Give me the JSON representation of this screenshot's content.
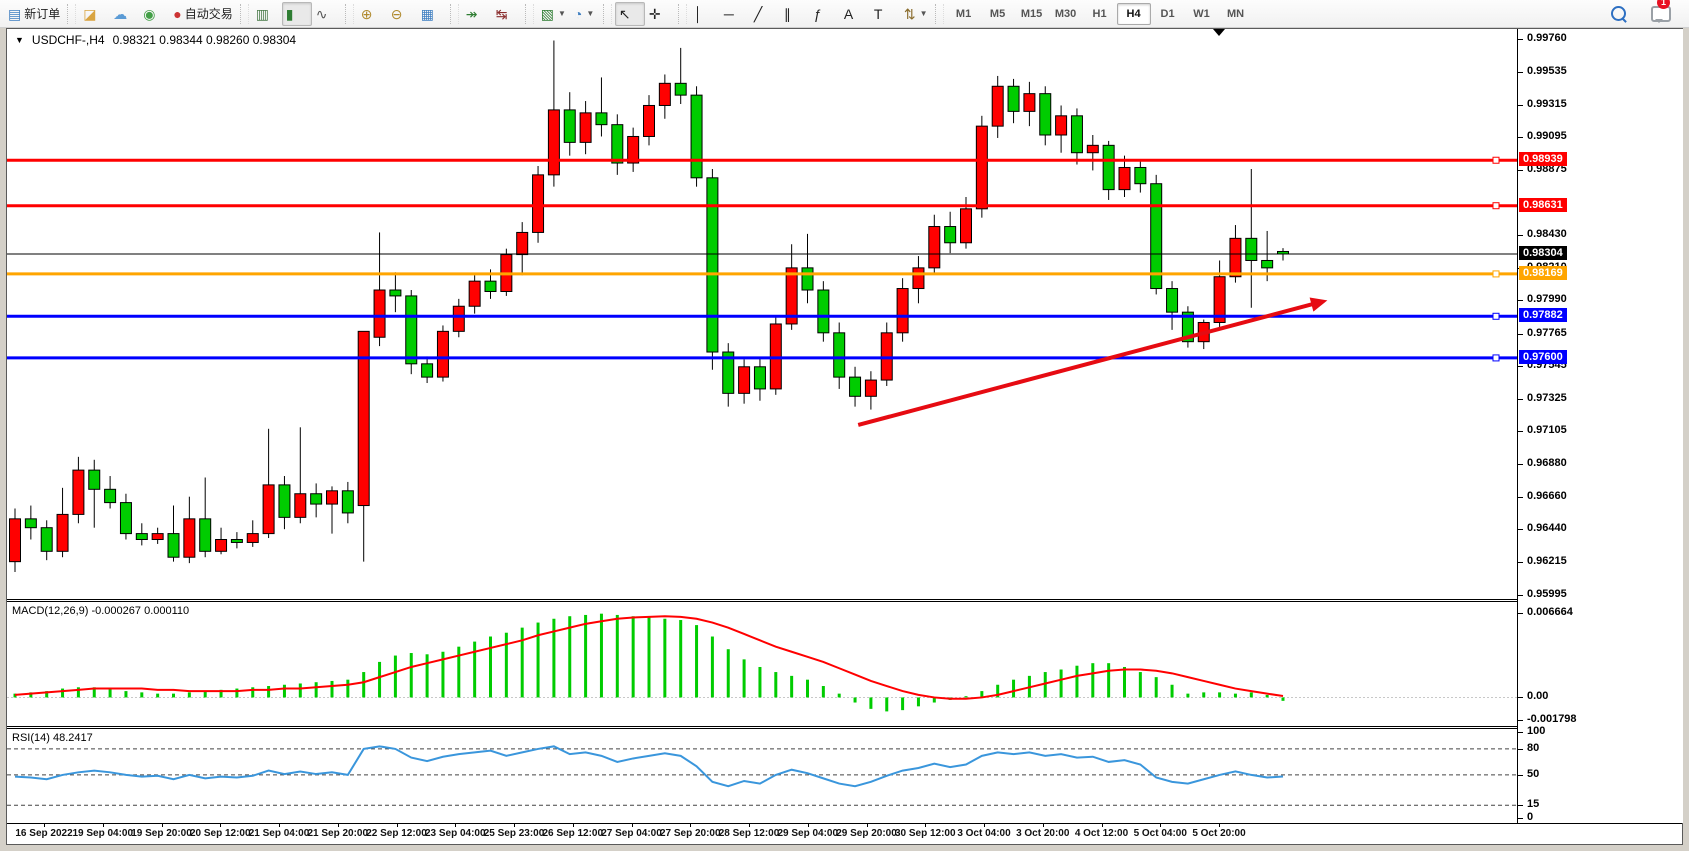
{
  "toolbar": {
    "buttons": [
      {
        "name": "new-order-button",
        "icon": "new-order-icon",
        "glyph": "▤",
        "color": "#3f7fc1",
        "label": "新订单"
      },
      {
        "sep": true
      },
      {
        "name": "highlighter-button",
        "icon": "highlighter-icon",
        "glyph": "◪",
        "color": "#d9a441"
      },
      {
        "name": "community-button",
        "icon": "community-icon",
        "glyph": "☁",
        "color": "#5b9bd5"
      },
      {
        "name": "signals-button",
        "icon": "signals-icon",
        "glyph": "◉",
        "color": "#43a047"
      },
      {
        "name": "autotrading-button",
        "icon": "autotrading-icon",
        "glyph": "●",
        "color": "#cc3333",
        "label": "自动交易"
      },
      {
        "sep": true
      },
      {
        "name": "bar-chart-button",
        "icon": "bar-chart-icon",
        "glyph": "▥",
        "color": "#4a7b4a"
      },
      {
        "name": "candlestick-button",
        "icon": "candlestick-icon",
        "glyph": "▮",
        "color": "#2e7d32",
        "active": true
      },
      {
        "name": "line-chart-button",
        "icon": "line-chart-icon",
        "glyph": "∿",
        "color": "#555555"
      },
      {
        "sep": true
      },
      {
        "name": "zoom-in-button",
        "icon": "zoom-in-icon",
        "glyph": "⊕",
        "color": "#b08a2e"
      },
      {
        "name": "zoom-out-button",
        "icon": "zoom-out-icon",
        "glyph": "⊖",
        "color": "#b08a2e"
      },
      {
        "name": "tile-windows-button",
        "icon": "tile-windows-icon",
        "glyph": "▦",
        "color": "#3f7fc1"
      },
      {
        "sep": true
      },
      {
        "name": "autoscroll-button",
        "icon": "autoscroll-icon",
        "glyph": "↠",
        "color": "#2e7d32"
      },
      {
        "name": "chart-shift-button",
        "icon": "chart-shift-icon",
        "glyph": "↹",
        "color": "#8a2e2e"
      },
      {
        "sep": true
      },
      {
        "name": "new-chart-button",
        "icon": "new-chart-icon",
        "glyph": "▧",
        "color": "#2e7d32",
        "dropdown": true
      },
      {
        "name": "periods-button",
        "icon": "periods-icon",
        "glyph": "◔",
        "color": "#3f7fc1",
        "dropdown": true
      },
      {
        "sep": true
      },
      {
        "name": "cursor-button",
        "icon": "cursor-icon",
        "glyph": "↖",
        "color": "#222222",
        "active": true
      },
      {
        "name": "crosshair-button",
        "icon": "crosshair-icon",
        "glyph": "✛",
        "color": "#222222"
      },
      {
        "sep": true
      },
      {
        "name": "vline-button",
        "icon": "vline-icon",
        "glyph": "│",
        "color": "#222222"
      },
      {
        "name": "hline-button",
        "icon": "hline-icon",
        "glyph": "─",
        "color": "#222222"
      },
      {
        "name": "trendline-button",
        "icon": "trendline-icon",
        "glyph": "╱",
        "color": "#222222"
      },
      {
        "name": "channel-button",
        "icon": "channel-icon",
        "glyph": "∥",
        "color": "#222222"
      },
      {
        "name": "fibonacci-button",
        "icon": "fibonacci-icon",
        "glyph": "ƒ",
        "color": "#222222"
      },
      {
        "name": "text-button",
        "icon": "text-icon",
        "glyph": "A",
        "color": "#222222"
      },
      {
        "name": "label-button",
        "icon": "label-icon",
        "glyph": "T",
        "color": "#222222"
      },
      {
        "name": "arrows-button",
        "icon": "arrows-icon",
        "glyph": "⇅",
        "color": "#8a6d2e",
        "dropdown": true
      },
      {
        "sep": true
      }
    ],
    "timeframes": [
      {
        "label": "M1"
      },
      {
        "label": "M5"
      },
      {
        "label": "M15"
      },
      {
        "label": "M30"
      },
      {
        "label": "H1"
      },
      {
        "label": "H4",
        "active": true
      },
      {
        "label": "D1"
      },
      {
        "label": "W1"
      },
      {
        "label": "MN"
      }
    ],
    "right": [
      {
        "name": "search-button",
        "icon": "search-icon"
      },
      {
        "name": "chat-button",
        "icon": "chat-icon",
        "badge": "1"
      }
    ]
  },
  "chart": {
    "title": "USDCHF-,H4",
    "ohlc": "0.98321 0.98344 0.98260 0.98304",
    "macd_label": "MACD(12,26,9) -0.000267 0.000110",
    "rsi_label": "RSI(14) 48.2417"
  },
  "chart_data": [
    {
      "type": "candlestick",
      "symbol": "USDCHF-",
      "period": "H4",
      "current": {
        "open": 0.98321,
        "high": 0.98344,
        "low": 0.9826,
        "close": 0.98304
      },
      "ylim": [
        0.95967,
        0.99828
      ],
      "colors": {
        "up": "#ff0000",
        "down": "#00cc00",
        "wick": "#000000",
        "body_outline": "#000000"
      },
      "y_axis_labels": [
        "0.99760",
        "0.99535",
        "0.99315",
        "0.99095",
        "0.98875",
        "0.98430",
        "0.98210",
        "0.97990",
        "0.97765",
        "0.97545",
        "0.97325",
        "0.97105",
        "0.96880",
        "0.96660",
        "0.96440",
        "0.96215",
        "0.95995"
      ],
      "x_axis_labels": [
        "16 Sep 2022",
        "19 Sep 04:00",
        "19 Sep 20:00",
        "20 Sep 12:00",
        "21 Sep 04:00",
        "21 Sep 20:00",
        "22 Sep 12:00",
        "23 Sep 04:00",
        "25 Sep 23:00",
        "26 Sep 12:00",
        "27 Sep 04:00",
        "27 Sep 20:00",
        "28 Sep 12:00",
        "29 Sep 04:00",
        "29 Sep 20:00",
        "30 Sep 12:00",
        "3 Oct 04:00",
        "3 Oct 20:00",
        "4 Oct 12:00",
        "5 Oct 04:00",
        "5 Oct 20:00"
      ],
      "hlines": [
        {
          "price": 0.98939,
          "label": "0.98939",
          "color": "#ff0000",
          "width": 3
        },
        {
          "price": 0.98631,
          "label": "0.98631",
          "color": "#ff0000",
          "width": 3
        },
        {
          "price": 0.98304,
          "label": "0.98304",
          "color": "#000000",
          "width": 1,
          "role": "current-price"
        },
        {
          "price": 0.98169,
          "label": "0.98169",
          "color": "#ffa500",
          "width": 3
        },
        {
          "price": 0.97882,
          "label": "0.97882",
          "color": "#0000ff",
          "width": 3
        },
        {
          "price": 0.976,
          "label": "0.97600",
          "color": "#0000ff",
          "width": 3
        }
      ],
      "trend_arrow": {
        "from": {
          "bar": 53.2,
          "price": 0.97146
        },
        "to": {
          "bar": 82.8,
          "price": 0.9799
        },
        "color": "#e60b12"
      },
      "unit": 1e-05,
      "candles": [
        [
          96220,
          96580,
          96150,
          96510
        ],
        [
          96510,
          96600,
          96370,
          96450
        ],
        [
          96450,
          96500,
          96230,
          96290
        ],
        [
          96290,
          96720,
          96250,
          96540
        ],
        [
          96540,
          96930,
          96480,
          96840
        ],
        [
          96840,
          96910,
          96450,
          96710
        ],
        [
          96710,
          96800,
          96580,
          96620
        ],
        [
          96620,
          96680,
          96370,
          96410
        ],
        [
          96410,
          96480,
          96330,
          96370
        ],
        [
          96370,
          96450,
          96340,
          96410
        ],
        [
          96410,
          96600,
          96220,
          96250
        ],
        [
          96250,
          96660,
          96210,
          96510
        ],
        [
          96510,
          96790,
          96250,
          96290
        ],
        [
          96290,
          96450,
          96270,
          96370
        ],
        [
          96370,
          96420,
          96310,
          96350
        ],
        [
          96350,
          96500,
          96320,
          96410
        ],
        [
          96410,
          97120,
          96380,
          96740
        ],
        [
          96740,
          96800,
          96440,
          96520
        ],
        [
          96520,
          97130,
          96480,
          96680
        ],
        [
          96680,
          96750,
          96520,
          96610
        ],
        [
          96610,
          96730,
          96410,
          96700
        ],
        [
          96700,
          96760,
          96480,
          96550
        ],
        [
          96600,
          97780,
          96220,
          97780
        ],
        [
          97740,
          98450,
          97680,
          98060
        ],
        [
          98060,
          98180,
          97910,
          98020
        ],
        [
          98020,
          98060,
          97490,
          97560
        ],
        [
          97560,
          97610,
          97430,
          97470
        ],
        [
          97470,
          97820,
          97440,
          97780
        ],
        [
          97780,
          98000,
          97740,
          97950
        ],
        [
          97950,
          98160,
          97900,
          98120
        ],
        [
          98120,
          98200,
          98000,
          98050
        ],
        [
          98050,
          98340,
          98020,
          98300
        ],
        [
          98300,
          98520,
          98160,
          98450
        ],
        [
          98450,
          98900,
          98380,
          98840
        ],
        [
          98840,
          99750,
          98760,
          99280
        ],
        [
          99280,
          99400,
          98970,
          99060
        ],
        [
          99060,
          99340,
          98980,
          99260
        ],
        [
          99260,
          99500,
          99100,
          99180
        ],
        [
          99180,
          99250,
          98840,
          98920
        ],
        [
          98920,
          99160,
          98860,
          99100
        ],
        [
          99100,
          99380,
          99040,
          99310
        ],
        [
          99310,
          99520,
          99220,
          99460
        ],
        [
          99460,
          99700,
          99320,
          99380
        ],
        [
          99380,
          99440,
          98760,
          98820
        ],
        [
          98820,
          98880,
          97520,
          97640
        ],
        [
          97640,
          97700,
          97270,
          97360
        ],
        [
          97360,
          97590,
          97290,
          97540
        ],
        [
          97540,
          97600,
          97310,
          97390
        ],
        [
          97390,
          97890,
          97350,
          97830
        ],
        [
          97830,
          98370,
          97790,
          98210
        ],
        [
          98210,
          98440,
          97970,
          98060
        ],
        [
          98060,
          98120,
          97710,
          97770
        ],
        [
          97770,
          97840,
          97390,
          97470
        ],
        [
          97470,
          97540,
          97270,
          97340
        ],
        [
          97340,
          97510,
          97250,
          97450
        ],
        [
          97450,
          97840,
          97410,
          97770
        ],
        [
          97770,
          98140,
          97710,
          98070
        ],
        [
          98070,
          98290,
          97970,
          98210
        ],
        [
          98210,
          98570,
          98170,
          98490
        ],
        [
          98490,
          98590,
          98310,
          98380
        ],
        [
          98380,
          98690,
          98340,
          98610
        ],
        [
          98610,
          99240,
          98550,
          99170
        ],
        [
          99170,
          99510,
          99090,
          99440
        ],
        [
          99440,
          99490,
          99190,
          99270
        ],
        [
          99270,
          99470,
          99170,
          99390
        ],
        [
          99390,
          99440,
          99040,
          99110
        ],
        [
          99110,
          99310,
          98990,
          99240
        ],
        [
          99240,
          99290,
          98910,
          98990
        ],
        [
          98990,
          99110,
          98870,
          99040
        ],
        [
          99040,
          99070,
          98670,
          98740
        ],
        [
          98740,
          98970,
          98690,
          98890
        ],
        [
          98890,
          98940,
          98720,
          98780
        ],
        [
          98780,
          98840,
          98030,
          98070
        ],
        [
          98070,
          98120,
          97790,
          97910
        ],
        [
          97910,
          97950,
          97670,
          97710
        ],
        [
          97710,
          97860,
          97660,
          97840
        ],
        [
          97840,
          98260,
          97800,
          98150
        ],
        [
          98150,
          98500,
          98110,
          98410
        ],
        [
          98410,
          98880,
          97940,
          98260
        ],
        [
          98260,
          98460,
          98120,
          98210
        ],
        [
          98321,
          98344,
          98260,
          98304
        ]
      ]
    },
    {
      "type": "bar",
      "name": "MACD",
      "label": "MACD(12,26,9) -0.000267 0.000110",
      "current_main": -0.000267,
      "current_signal": 0.00011,
      "ylim": [
        -0.00225,
        0.00752
      ],
      "y_axis_labels": [
        "0.006664",
        "0.00",
        "-0.001798"
      ],
      "colors": {
        "hist": "#00cc00",
        "signal": "#ff0000"
      },
      "unit": 0.0001,
      "hist": [
        3,
        4,
        5,
        7,
        8,
        8,
        7,
        5,
        4,
        3,
        3,
        4,
        5,
        6,
        7,
        8,
        9,
        10,
        11,
        12,
        13,
        14,
        20,
        28,
        33,
        35,
        34,
        36,
        40,
        44,
        48,
        51,
        55,
        59,
        62,
        64,
        65,
        66,
        65,
        64,
        63,
        62,
        61,
        57,
        48,
        38,
        30,
        24,
        20,
        17,
        14,
        9,
        3,
        -4,
        -9,
        -11,
        -10,
        -7,
        -4,
        -2,
        1,
        5,
        10,
        14,
        17,
        20,
        22,
        25,
        27,
        27,
        24,
        20,
        16,
        10,
        3,
        4,
        4,
        3,
        4,
        2,
        -2.67
      ],
      "signal": [
        2,
        3,
        4,
        5,
        6,
        7,
        7,
        7,
        7,
        6,
        6,
        5,
        5,
        5,
        5,
        6,
        6,
        7,
        7,
        8,
        9,
        10,
        12,
        16,
        20,
        24,
        27,
        30,
        33,
        36,
        39,
        42,
        45,
        49,
        52,
        55,
        58,
        60,
        62,
        63,
        63.5,
        64,
        63.5,
        62,
        59,
        55,
        50,
        45,
        40,
        36,
        32,
        28,
        23,
        18,
        13,
        9,
        5,
        2,
        0,
        -1,
        -1,
        0,
        2,
        5,
        8,
        11,
        14,
        17,
        19,
        21,
        22,
        22,
        21,
        19,
        16,
        13,
        10,
        7,
        5,
        3,
        1.1
      ]
    },
    {
      "type": "line",
      "name": "RSI",
      "label": "RSI(14) 48.2417",
      "current": 48.2417,
      "ylim": [
        -5.5,
        103
      ],
      "levels": [
        80,
        50,
        15
      ],
      "y_axis_labels": [
        "100",
        "80",
        "50",
        "15",
        "0"
      ],
      "colors": {
        "line": "#3a96dc",
        "level": "#444444"
      },
      "values": [
        48,
        47,
        45,
        50,
        53,
        55,
        53,
        50,
        48,
        49,
        45,
        50,
        46,
        48,
        47,
        49,
        55,
        51,
        54,
        51,
        53,
        50,
        80,
        83,
        80,
        70,
        66,
        71,
        74,
        76,
        78,
        72,
        76,
        80,
        83,
        74,
        76,
        72,
        65,
        69,
        72,
        75,
        72,
        60,
        42,
        37,
        43,
        40,
        50,
        56,
        52,
        46,
        40,
        37,
        42,
        49,
        55,
        58,
        63,
        59,
        62,
        72,
        76,
        74,
        76,
        72,
        74,
        70,
        71,
        65,
        67,
        62,
        47,
        42,
        40,
        45,
        50,
        54,
        50,
        47,
        48.24
      ]
    }
  ]
}
